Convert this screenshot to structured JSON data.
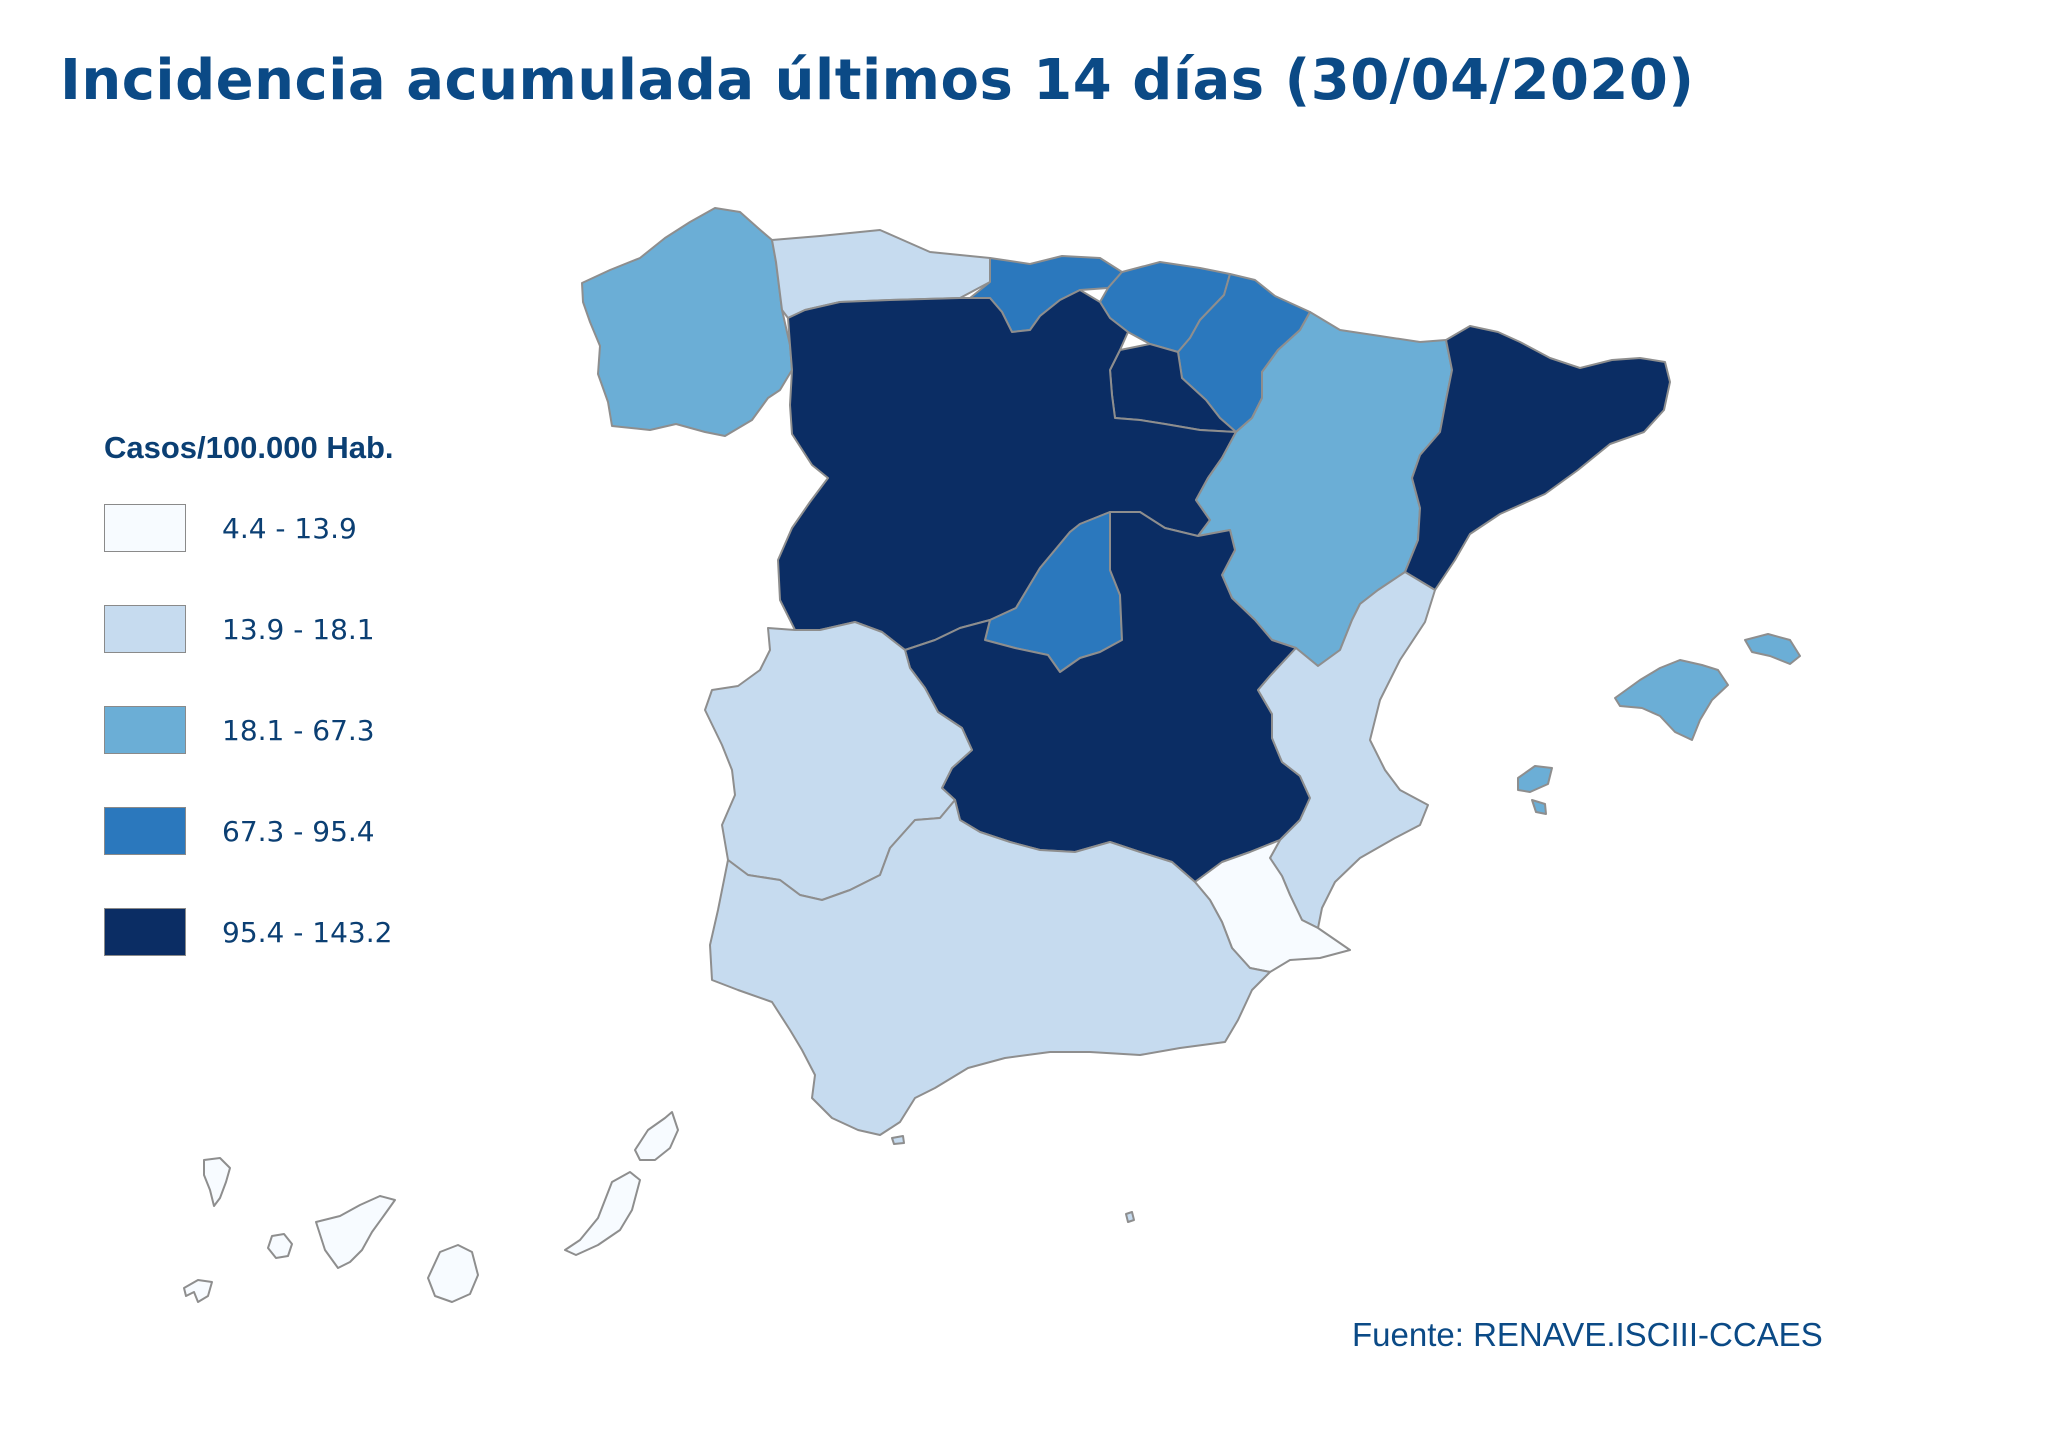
{
  "title": "Incidencia acumulada últimos 14 días (30/04/2020)",
  "legend": {
    "title": "Casos/100.000 Hab.",
    "items": [
      {
        "label": "4.4 - 13.9",
        "color": "#f7fbff"
      },
      {
        "label": "13.9 - 18.1",
        "color": "#c6dbef"
      },
      {
        "label": "18.1 - 67.3",
        "color": "#6baed6"
      },
      {
        "label": "67.3 - 95.4",
        "color": "#2b78bd"
      },
      {
        "label": "95.4 - 143.2",
        "color": "#0b2d64"
      }
    ]
  },
  "source": "Fuente: RENAVE.ISCIII-CCAES",
  "regions": [
    {
      "id": "galicia",
      "class": 2
    },
    {
      "id": "asturias",
      "class": 1
    },
    {
      "id": "cantabria",
      "class": 3
    },
    {
      "id": "pais-vasco",
      "class": 3
    },
    {
      "id": "navarra",
      "class": 3
    },
    {
      "id": "la-rioja",
      "class": 4
    },
    {
      "id": "castilla-y-leon",
      "class": 4
    },
    {
      "id": "aragon",
      "class": 2
    },
    {
      "id": "cataluna",
      "class": 4
    },
    {
      "id": "madrid",
      "class": 3
    },
    {
      "id": "castilla-la-mancha",
      "class": 4
    },
    {
      "id": "extremadura",
      "class": 1
    },
    {
      "id": "comunitat-valenciana",
      "class": 1
    },
    {
      "id": "murcia",
      "class": 0
    },
    {
      "id": "andalucia",
      "class": 1
    },
    {
      "id": "illes-balears",
      "class": 2
    },
    {
      "id": "canarias",
      "class": 0
    },
    {
      "id": "ceuta",
      "class": 1
    },
    {
      "id": "melilla",
      "class": 1
    }
  ]
}
